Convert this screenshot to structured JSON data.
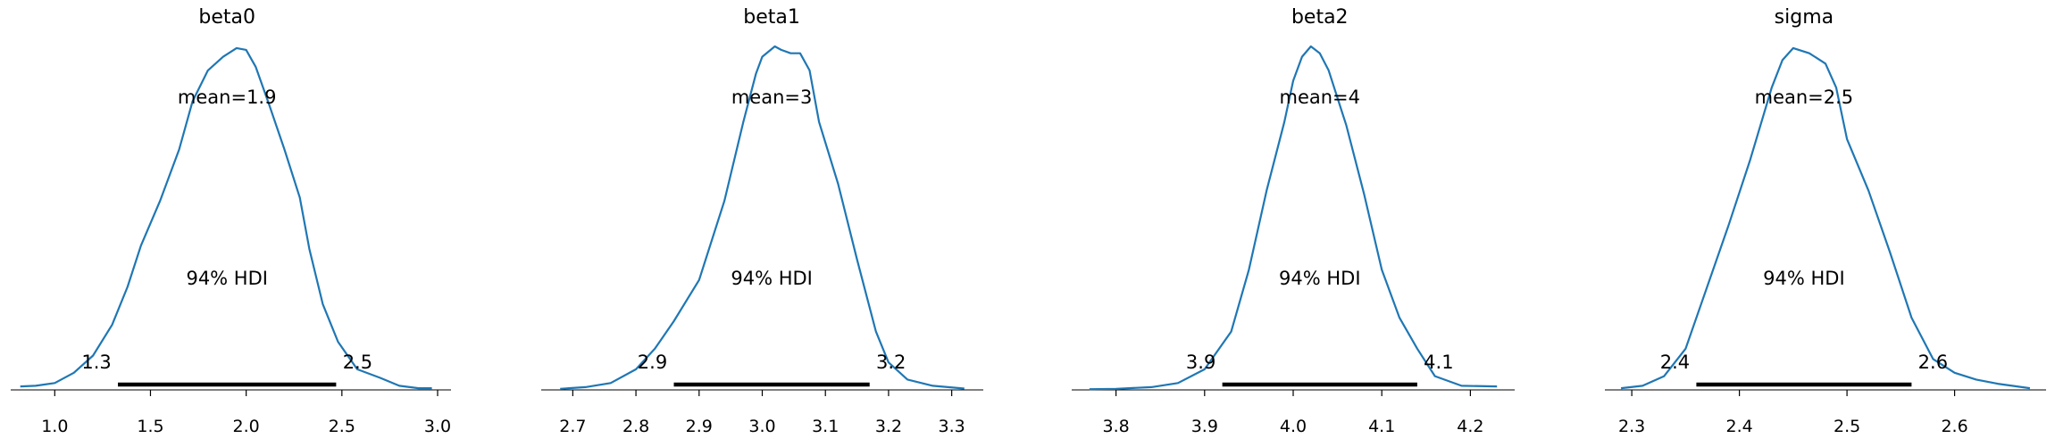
{
  "chart_data": [
    {
      "type": "line",
      "title": "beta0",
      "mean_label": "mean=1.9",
      "hdi_label": "94% HDI",
      "hdi": [
        1.33,
        2.47
      ],
      "hdi_tick_labels": [
        "1.3",
        "2.5"
      ],
      "xlim": [
        0.77,
        3.07
      ],
      "xticks": [
        1.0,
        1.5,
        2.0,
        2.5,
        3.0
      ],
      "xtick_labels": [
        "1.0",
        "1.5",
        "2.0",
        "2.5",
        "3.0"
      ],
      "density": {
        "x": [
          0.82,
          0.9,
          1.0,
          1.1,
          1.2,
          1.3,
          1.38,
          1.45,
          1.55,
          1.65,
          1.72,
          1.8,
          1.88,
          1.95,
          2.0,
          2.05,
          2.12,
          2.2,
          2.28,
          2.33,
          2.4,
          2.48,
          2.58,
          2.7,
          2.8,
          2.9,
          2.97
        ],
        "y": [
          0.01,
          0.012,
          0.02,
          0.05,
          0.1,
          0.19,
          0.3,
          0.42,
          0.55,
          0.7,
          0.84,
          0.93,
          0.97,
          0.995,
          0.99,
          0.94,
          0.83,
          0.7,
          0.56,
          0.41,
          0.25,
          0.14,
          0.06,
          0.035,
          0.012,
          0.005,
          0.005
        ]
      }
    },
    {
      "type": "line",
      "title": "beta1",
      "mean_label": "mean=3",
      "hdi_label": "94% HDI",
      "hdi": [
        2.86,
        3.17
      ],
      "hdi_tick_labels": [
        "2.9",
        "3.2"
      ],
      "xlim": [
        2.65,
        3.35
      ],
      "xticks": [
        2.7,
        2.8,
        2.9,
        3.0,
        3.1,
        3.2,
        3.3
      ],
      "xtick_labels": [
        "2.7",
        "2.8",
        "2.9",
        "3.0",
        "3.1",
        "3.2",
        "3.3"
      ],
      "density": {
        "x": [
          2.68,
          2.72,
          2.76,
          2.8,
          2.83,
          2.86,
          2.9,
          2.94,
          2.97,
          2.99,
          3.0,
          3.02,
          3.03,
          3.045,
          3.06,
          3.075,
          3.09,
          3.12,
          3.15,
          3.18,
          3.2,
          3.23,
          3.27,
          3.32
        ],
        "y": [
          0.003,
          0.008,
          0.02,
          0.06,
          0.12,
          0.2,
          0.32,
          0.55,
          0.78,
          0.92,
          0.97,
          1.0,
          0.99,
          0.98,
          0.98,
          0.93,
          0.78,
          0.6,
          0.38,
          0.17,
          0.08,
          0.03,
          0.012,
          0.004
        ]
      }
    },
    {
      "type": "line",
      "title": "beta2",
      "mean_label": "mean=4",
      "hdi_label": "94% HDI",
      "hdi": [
        3.92,
        4.14
      ],
      "hdi_tick_labels": [
        "3.9",
        "4.1"
      ],
      "xlim": [
        3.75,
        4.25
      ],
      "xticks": [
        3.8,
        3.9,
        4.0,
        4.1,
        4.2
      ],
      "xtick_labels": [
        "3.8",
        "3.9",
        "4.0",
        "4.1",
        "4.2"
      ],
      "density": {
        "x": [
          3.77,
          3.8,
          3.84,
          3.87,
          3.9,
          3.93,
          3.95,
          3.97,
          3.99,
          4.0,
          4.01,
          4.02,
          4.03,
          4.04,
          4.06,
          4.08,
          4.1,
          4.12,
          4.14,
          4.16,
          4.19,
          4.23
        ],
        "y": [
          0.002,
          0.003,
          0.008,
          0.02,
          0.06,
          0.17,
          0.35,
          0.58,
          0.78,
          0.9,
          0.97,
          1.0,
          0.98,
          0.93,
          0.77,
          0.57,
          0.35,
          0.21,
          0.12,
          0.04,
          0.012,
          0.01
        ]
      }
    },
    {
      "type": "line",
      "title": "sigma",
      "mean_label": "mean=2.5",
      "hdi_label": "94% HDI",
      "hdi": [
        2.36,
        2.56
      ],
      "hdi_tick_labels": [
        "2.4",
        "2.6"
      ],
      "xlim": [
        2.275,
        2.685
      ],
      "xticks": [
        2.3,
        2.4,
        2.5,
        2.6
      ],
      "xtick_labels": [
        "2.3",
        "2.4",
        "2.5",
        "2.6"
      ],
      "density": {
        "x": [
          2.29,
          2.31,
          2.33,
          2.35,
          2.37,
          2.39,
          2.41,
          2.43,
          2.44,
          2.45,
          2.465,
          2.48,
          2.49,
          2.5,
          2.52,
          2.54,
          2.56,
          2.58,
          2.6,
          2.62,
          2.64,
          2.67
        ],
        "y": [
          0.005,
          0.012,
          0.04,
          0.12,
          0.3,
          0.48,
          0.67,
          0.88,
          0.96,
          0.995,
          0.98,
          0.95,
          0.88,
          0.73,
          0.58,
          0.4,
          0.21,
          0.09,
          0.05,
          0.03,
          0.018,
          0.005
        ]
      }
    }
  ]
}
